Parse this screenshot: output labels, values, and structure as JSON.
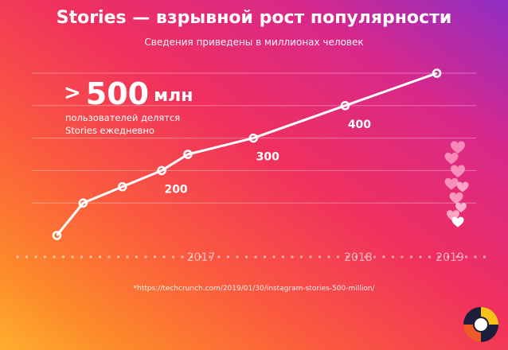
{
  "title": "Stories — взрывной рост популярности",
  "subtitle": "Сведения приведены в миллионах человек",
  "headline": {
    "prefix": ">",
    "number": "500",
    "unit": "млн"
  },
  "description_line1": "пользователей делятся",
  "description_line2": "Stories ежедневно",
  "source": "*https://techcrunch.com/2019/01/30/instagram-stories-500-million/",
  "colors": {
    "line": "#ffffff",
    "grid": "rgba(255,255,255,0.35)",
    "axis_text": "rgba(255,255,255,0.6)"
  },
  "icons": [
    "heart-icon",
    "logo-icon"
  ],
  "chart_data": {
    "type": "line",
    "title": "Stories — взрывной рост популярности",
    "subtitle": "Сведения приведены в миллионах человек",
    "x": [
      "2016-08",
      "2016-10",
      "2017-01",
      "2017-04",
      "2017-06",
      "2017-11",
      "2018-06",
      "2019-01"
    ],
    "values": [
      0,
      100,
      150,
      200,
      250,
      300,
      400,
      500
    ],
    "data_labels": [
      "",
      "",
      "",
      "200",
      "",
      "300",
      "400",
      ""
    ],
    "x_ticks": [
      "2017",
      "2018",
      "2019"
    ],
    "ylim": [
      0,
      500
    ],
    "grid": true,
    "xlabel": "",
    "ylabel": ""
  }
}
